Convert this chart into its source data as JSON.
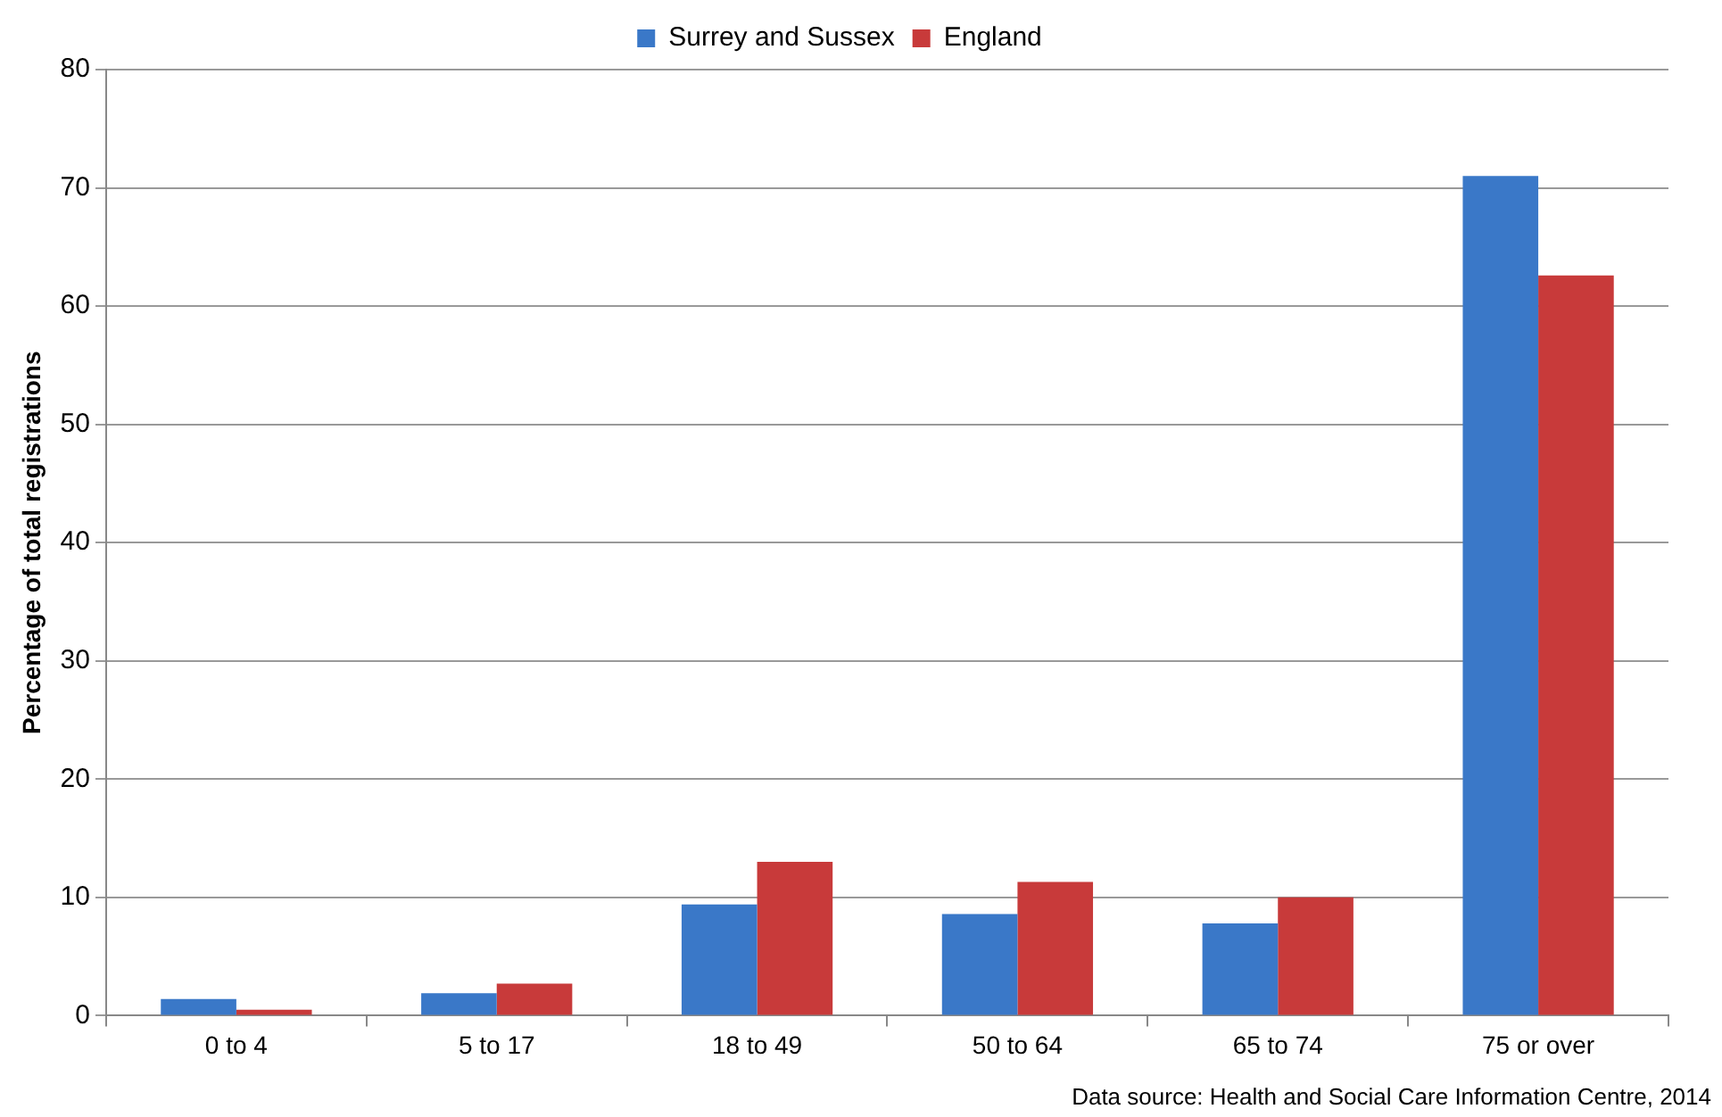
{
  "chart_data": {
    "type": "bar",
    "ylabel": "Percentage of total registrations",
    "categories": [
      "0 to 4",
      "5 to 17",
      "18 to 49",
      "50 to 64",
      "65 to 74",
      "75 or over"
    ],
    "series": [
      {
        "name": "Surrey and Sussex",
        "color": "#3a78c8",
        "values": [
          1.4,
          1.9,
          9.4,
          8.6,
          7.8,
          71.0
        ]
      },
      {
        "name": "England",
        "color": "#c83a3a",
        "values": [
          0.5,
          2.7,
          13.0,
          11.3,
          10.0,
          62.6
        ]
      }
    ],
    "ylim": [
      0,
      80
    ],
    "yticks": [
      0,
      10,
      20,
      30,
      40,
      50,
      60,
      70,
      80
    ],
    "grid": "y",
    "legend": "top",
    "annotations": [
      "Data source: Health and Social Care Information Centre, 2014"
    ]
  }
}
